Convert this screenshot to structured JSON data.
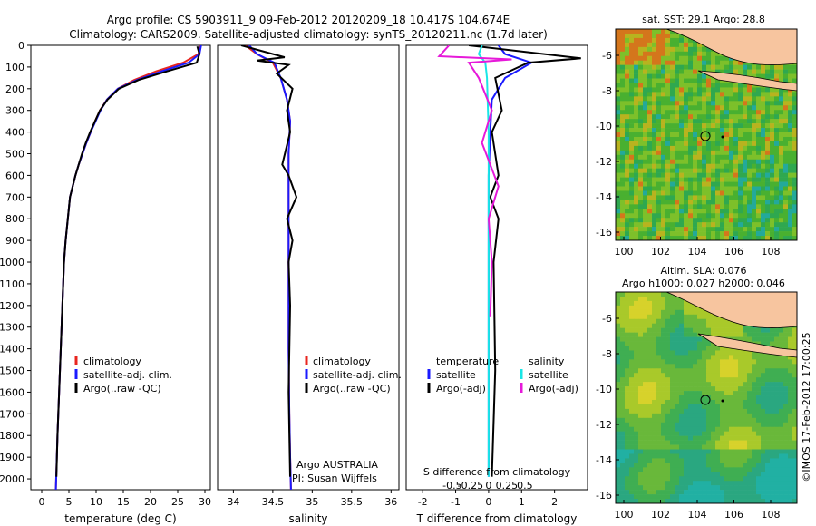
{
  "header": {
    "line1": "Argo profile: CS 5903911_9 09-Feb-2012 20120209_18 10.417S 104.674E",
    "line2": "Climatology: CARS2009. Satellite-adjusted climatology: synTS_20120211.nc (1.7d later)"
  },
  "colors": {
    "climatology": "#e8251f",
    "satellite": "#1a1aff",
    "argo": "#000000",
    "sat_salinity": "#19e6e6",
    "argo_salinity": "#e619d9",
    "land": "#f7c59f"
  },
  "depth_ticks": [
    "0",
    "100",
    "200",
    "300",
    "400",
    "500",
    "600",
    "700",
    "800",
    "900",
    "1000",
    "1100",
    "1200",
    "1300",
    "1400",
    "1500",
    "1600",
    "1700",
    "1800",
    "1900",
    "2000"
  ],
  "panel_temp": {
    "xticks": [
      "0",
      "5",
      "10",
      "15",
      "20",
      "25",
      "30"
    ],
    "xlabel": "temperature (deg C)",
    "legend": [
      "climatology",
      "satellite-adj. clim.",
      "Argo(..raw -QC)"
    ]
  },
  "panel_sal": {
    "xticks": [
      "34",
      "34.5",
      "35",
      "35.5",
      "36"
    ],
    "xlabel": "salinity",
    "legend": [
      "climatology",
      "satellite-adj. clim.",
      "Argo(..raw -QC)"
    ],
    "note1": "Argo AUSTRALIA",
    "note2": "PI: Susan Wijffels"
  },
  "panel_diff": {
    "xticks_T": [
      "-2",
      "-1",
      "0",
      "1",
      "2"
    ],
    "xticks_S": [
      "-0.5",
      "-0.25",
      "0",
      "0.25",
      "0.5"
    ],
    "xlabel": "T difference from climatology",
    "slabel": "S difference from climatology",
    "legend_head_T": "temperature",
    "legend_head_S": "salinity",
    "legend_T": [
      "satellite",
      "Argo(-adj)"
    ],
    "legend_S": [
      "satellite",
      "Argo(-adj)"
    ]
  },
  "map_sst": {
    "title": "sat. SST: 29.1  Argo: 28.8",
    "yticks": [
      "-6",
      "-8",
      "-10",
      "-12",
      "-14",
      "-16"
    ],
    "xticks": [
      "100",
      "102",
      "104",
      "106",
      "108"
    ]
  },
  "map_sla": {
    "title1": "Altim. SLA: 0.076",
    "title2": "Argo h1000: 0.027 h2000: 0.046",
    "yticks": [
      "-6",
      "-8",
      "-10",
      "-12",
      "-14",
      "-16"
    ],
    "xticks": [
      "100",
      "102",
      "104",
      "106",
      "108"
    ]
  },
  "credit": "©IMOS 17-Feb-2012 17:00:25",
  "chart_data": {
    "type": "line",
    "ylabel": "",
    "ylim": [
      2050,
      0
    ],
    "panels": [
      {
        "name": "temperature",
        "xlim": [
          -2,
          31
        ],
        "series": [
          {
            "name": "climatology",
            "x": [
              29.2,
              28.8,
              26,
              21,
              17,
              14,
              12,
              10.7,
              9.8,
              9,
              8.2,
              7.5,
              6.8,
              6.2,
              5.7,
              5.2,
              4.8,
              4.4,
              4.1,
              3.8,
              3.5,
              3.2,
              2.9,
              2.6
            ],
            "y": [
              0,
              40,
              80,
              120,
              160,
              200,
              250,
              300,
              350,
              400,
              450,
              500,
              550,
              600,
              650,
              700,
              800,
              900,
              1000,
              1200,
              1400,
              1600,
              1800,
              2050
            ]
          },
          {
            "name": "satellite-adj. clim.",
            "x": [
              29.3,
              29,
              27,
              22,
              17.5,
              14,
              12,
              10.8,
              9.9,
              9,
              8.2,
              7.5,
              6.8,
              6.2,
              5.7,
              5.2,
              4.8,
              4.4,
              4.1,
              3.8,
              3.5,
              3.2,
              2.9,
              2.6
            ],
            "y": [
              0,
              40,
              80,
              120,
              160,
              200,
              250,
              300,
              350,
              400,
              450,
              500,
              550,
              600,
              650,
              700,
              800,
              900,
              1000,
              1200,
              1400,
              1600,
              1800,
              2050
            ]
          },
          {
            "name": "Argo(..raw -QC)",
            "x": [
              28.6,
              29,
              28.5,
              23,
              17.8,
              14.2,
              12.1,
              10.7,
              9.8,
              8.9,
              8.1,
              7.4,
              6.8,
              6.2,
              5.7,
              5.2,
              4.8,
              4.4,
              4.1,
              3.8,
              3.5,
              3.2,
              2.9,
              2.7
            ],
            "y": [
              5,
              40,
              80,
              120,
              160,
              200,
              250,
              300,
              350,
              400,
              450,
              500,
              550,
              600,
              650,
              700,
              800,
              900,
              1000,
              1200,
              1400,
              1600,
              1800,
              1990
            ]
          }
        ]
      },
      {
        "name": "salinity",
        "xlim": [
          33.8,
          36.1
        ],
        "series": [
          {
            "name": "climatology",
            "x": [
              34.15,
              34.3,
              34.5,
              34.6,
              34.68,
              34.72,
              34.7,
              34.7,
              34.7,
              34.7,
              34.7,
              34.71,
              34.72,
              34.73
            ],
            "y": [
              0,
              40,
              80,
              150,
              250,
              350,
              500,
              700,
              900,
              1100,
              1400,
              1700,
              1900,
              2050
            ]
          },
          {
            "name": "satellite-adj. clim.",
            "x": [
              34.2,
              34.3,
              34.52,
              34.6,
              34.68,
              34.72,
              34.7,
              34.7,
              34.7,
              34.7,
              34.7,
              34.71,
              34.72,
              34.73
            ],
            "y": [
              0,
              40,
              80,
              150,
              250,
              350,
              500,
              700,
              900,
              1100,
              1400,
              1700,
              1900,
              2050
            ]
          },
          {
            "name": "Argo(..raw -QC)",
            "x": [
              34.1,
              34.65,
              34.3,
              34.7,
              34.55,
              34.75,
              34.68,
              34.72,
              34.62,
              34.7,
              34.8,
              34.68,
              34.75,
              34.7,
              34.72,
              34.7,
              34.72
            ],
            "y": [
              0,
              55,
              70,
              90,
              130,
              200,
              300,
              400,
              550,
              600,
              700,
              800,
              900,
              1000,
              1200,
              1600,
              1990
            ]
          }
        ]
      },
      {
        "name": "difference",
        "xlim": [
          -2.5,
          3
        ],
        "series": [
          {
            "name": "temperature satellite",
            "x": [
              0.3,
              0.5,
              1.3,
              0.5,
              0.1,
              0.05,
              0,
              0,
              0,
              0
            ],
            "y": [
              0,
              40,
              80,
              150,
              250,
              400,
              600,
              1000,
              1500,
              1990
            ]
          },
          {
            "name": "temperature Argo(-adj)",
            "x": [
              -0.6,
              2.8,
              1.2,
              0.2,
              0.4,
              0.1,
              0.3,
              0.05,
              0.3,
              0.15,
              0.2,
              0.1
            ],
            "y": [
              0,
              60,
              80,
              150,
              300,
              400,
              600,
              700,
              800,
              1000,
              1500,
              1990
            ]
          },
          {
            "name": "salinity satellite",
            "x": [
              -0.2,
              -0.3,
              -0.1,
              -0.05,
              -0.03,
              0,
              0,
              0,
              0
            ],
            "y": [
              0,
              40,
              80,
              150,
              250,
              400,
              800,
              1400,
              1990
            ]
          },
          {
            "name": "salinity Argo(-adj)",
            "x": [
              -1.2,
              -1.5,
              0.7,
              -0.6,
              -0.3,
              0.1,
              -0.2,
              0.3,
              0,
              0.1,
              0.05
            ],
            "y": [
              0,
              50,
              65,
              80,
              150,
              300,
              450,
              650,
              800,
              1000,
              1250
            ]
          }
        ]
      }
    ]
  }
}
